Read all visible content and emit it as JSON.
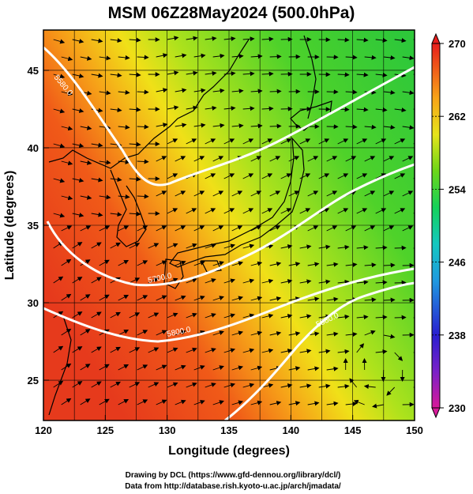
{
  "title": "MSM 06Z28May2024 (500.0hPa)",
  "x_axis": {
    "label": "Longitude (degrees)",
    "range": [
      120,
      150
    ],
    "ticks": [
      "120",
      "125",
      "130",
      "135",
      "140",
      "145",
      "150"
    ]
  },
  "y_axis": {
    "label": "Latitude  (degrees)",
    "range": [
      22.4,
      47.6
    ],
    "ticks": [
      "25",
      "30",
      "35",
      "40",
      "45"
    ]
  },
  "colorbar": {
    "range": [
      230,
      270
    ],
    "tick_labels": [
      "270",
      "262",
      "254",
      "246",
      "238",
      "230"
    ],
    "colors": [
      "#d81a9a",
      "#2a1fd0",
      "#1f9ae0",
      "#14c8c0",
      "#15d25a",
      "#6cd618",
      "#e6e41a",
      "#f8b418",
      "#f46a18",
      "#e81e1c"
    ]
  },
  "contours": [
    {
      "label": "5580.0"
    },
    {
      "label": "5700.0"
    },
    {
      "label": "5800.0"
    },
    {
      "label": "5880.0"
    }
  ],
  "credit": {
    "line1": "Drawing by DCL (https://www.gfd-dennou.org/library/dcl/)",
    "line2": "Data from http://database.rish.kyoto-u.ac.jp/arch/jmadata/"
  }
}
